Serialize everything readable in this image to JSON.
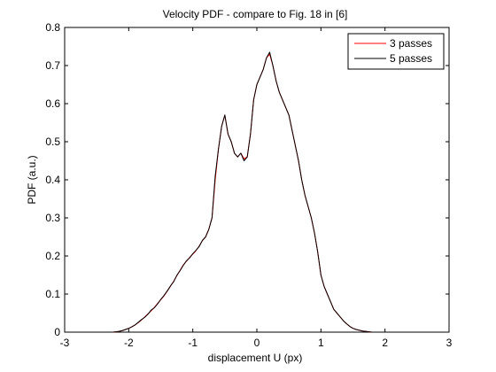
{
  "chart_data": {
    "type": "line",
    "title": "Velocity PDF - compare to Fig. 18 in [6]",
    "xlabel": "displacement U (px)",
    "ylabel": "PDF (a.u.)",
    "xlim": [
      -3,
      3
    ],
    "ylim": [
      0,
      0.8
    ],
    "xticks": [
      -3,
      -2,
      -1,
      0,
      1,
      2,
      3
    ],
    "xtick_labels": [
      "-3",
      "-2",
      "-1",
      "0",
      "1",
      "2",
      "3"
    ],
    "yticks": [
      0,
      0.1,
      0.2,
      0.3,
      0.4,
      0.5,
      0.6,
      0.7,
      0.8
    ],
    "ytick_labels": [
      "0",
      "0.1",
      "0.2",
      "0.3",
      "0.4",
      "0.5",
      "0.6",
      "0.7",
      "0.8"
    ],
    "grid": false,
    "legend_position": "top-right",
    "series": [
      {
        "name": "3 passes",
        "color": "#ff0000",
        "x": [
          -2.25,
          -2.2,
          -2.15,
          -2.1,
          -2.05,
          -2.0,
          -1.95,
          -1.9,
          -1.85,
          -1.8,
          -1.75,
          -1.7,
          -1.65,
          -1.6,
          -1.55,
          -1.5,
          -1.45,
          -1.4,
          -1.35,
          -1.3,
          -1.25,
          -1.2,
          -1.15,
          -1.1,
          -1.05,
          -1.0,
          -0.95,
          -0.9,
          -0.85,
          -0.8,
          -0.75,
          -0.7,
          -0.65,
          -0.6,
          -0.55,
          -0.5,
          -0.45,
          -0.4,
          -0.35,
          -0.3,
          -0.25,
          -0.2,
          -0.15,
          -0.1,
          -0.05,
          0.0,
          0.05,
          0.1,
          0.15,
          0.2,
          0.25,
          0.3,
          0.35,
          0.4,
          0.45,
          0.5,
          0.55,
          0.6,
          0.65,
          0.7,
          0.75,
          0.8,
          0.85,
          0.9,
          0.95,
          1.0,
          1.05,
          1.1,
          1.15,
          1.2,
          1.25,
          1.3,
          1.35,
          1.4,
          1.45,
          1.5,
          1.55,
          1.6,
          1.65,
          1.7,
          1.75,
          1.8,
          1.85,
          1.9
        ],
        "y": [
          0.0,
          0.001,
          0.002,
          0.004,
          0.007,
          0.01,
          0.014,
          0.019,
          0.025,
          0.032,
          0.04,
          0.048,
          0.056,
          0.065,
          0.075,
          0.085,
          0.095,
          0.107,
          0.12,
          0.133,
          0.148,
          0.162,
          0.176,
          0.186,
          0.196,
          0.205,
          0.214,
          0.226,
          0.24,
          0.25,
          0.27,
          0.3,
          0.4,
          0.48,
          0.54,
          0.57,
          0.52,
          0.5,
          0.47,
          0.46,
          0.47,
          0.455,
          0.46,
          0.52,
          0.61,
          0.65,
          0.67,
          0.69,
          0.72,
          0.73,
          0.7,
          0.66,
          0.63,
          0.61,
          0.59,
          0.57,
          0.53,
          0.49,
          0.45,
          0.4,
          0.36,
          0.33,
          0.3,
          0.26,
          0.21,
          0.15,
          0.12,
          0.1,
          0.08,
          0.06,
          0.05,
          0.04,
          0.03,
          0.022,
          0.015,
          0.01,
          0.007,
          0.005,
          0.003,
          0.002,
          0.001,
          0.0,
          0.0,
          0.0
        ]
      },
      {
        "name": "5 passes",
        "color": "#000000",
        "x": [
          -2.25,
          -2.2,
          -2.15,
          -2.1,
          -2.05,
          -2.0,
          -1.95,
          -1.9,
          -1.85,
          -1.8,
          -1.75,
          -1.7,
          -1.65,
          -1.6,
          -1.55,
          -1.5,
          -1.45,
          -1.4,
          -1.35,
          -1.3,
          -1.25,
          -1.2,
          -1.15,
          -1.1,
          -1.05,
          -1.0,
          -0.95,
          -0.9,
          -0.85,
          -0.8,
          -0.75,
          -0.7,
          -0.65,
          -0.6,
          -0.55,
          -0.5,
          -0.45,
          -0.4,
          -0.35,
          -0.3,
          -0.25,
          -0.2,
          -0.15,
          -0.1,
          -0.05,
          0.0,
          0.05,
          0.1,
          0.15,
          0.2,
          0.25,
          0.3,
          0.35,
          0.4,
          0.45,
          0.5,
          0.55,
          0.6,
          0.65,
          0.7,
          0.75,
          0.8,
          0.85,
          0.9,
          0.95,
          1.0,
          1.05,
          1.1,
          1.15,
          1.2,
          1.25,
          1.3,
          1.35,
          1.4,
          1.45,
          1.5,
          1.55,
          1.6,
          1.65,
          1.7,
          1.75,
          1.8,
          1.85,
          1.9
        ],
        "y": [
          0.0,
          0.001,
          0.002,
          0.004,
          0.007,
          0.01,
          0.014,
          0.019,
          0.026,
          0.033,
          0.039,
          0.047,
          0.058,
          0.064,
          0.074,
          0.086,
          0.096,
          0.108,
          0.121,
          0.132,
          0.149,
          0.161,
          0.175,
          0.187,
          0.195,
          0.206,
          0.215,
          0.225,
          0.241,
          0.25,
          0.27,
          0.3,
          0.41,
          0.48,
          0.54,
          0.57,
          0.52,
          0.5,
          0.47,
          0.46,
          0.47,
          0.45,
          0.46,
          0.52,
          0.61,
          0.65,
          0.67,
          0.69,
          0.72,
          0.735,
          0.7,
          0.66,
          0.63,
          0.61,
          0.59,
          0.57,
          0.53,
          0.49,
          0.45,
          0.4,
          0.36,
          0.33,
          0.3,
          0.26,
          0.21,
          0.15,
          0.12,
          0.1,
          0.08,
          0.06,
          0.05,
          0.04,
          0.03,
          0.022,
          0.015,
          0.01,
          0.007,
          0.005,
          0.003,
          0.002,
          0.001,
          0.0,
          0.0,
          0.0
        ]
      }
    ]
  }
}
